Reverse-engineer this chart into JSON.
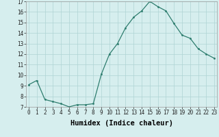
{
  "x": [
    0,
    1,
    2,
    3,
    4,
    5,
    6,
    7,
    8,
    9,
    10,
    11,
    12,
    13,
    14,
    15,
    16,
    17,
    18,
    19,
    20,
    21,
    22,
    23
  ],
  "y": [
    9.1,
    9.5,
    7.7,
    7.5,
    7.3,
    7.0,
    7.2,
    7.2,
    7.3,
    10.1,
    12.0,
    13.0,
    14.5,
    15.5,
    16.1,
    17.0,
    16.5,
    16.1,
    14.9,
    13.8,
    13.5,
    12.5,
    12.0,
    11.6
  ],
  "xlabel": "Humidex (Indice chaleur)",
  "ylim": [
    7,
    17
  ],
  "xlim": [
    -0.3,
    23.3
  ],
  "yticks": [
    7,
    8,
    9,
    10,
    11,
    12,
    13,
    14,
    15,
    16,
    17
  ],
  "xticks": [
    0,
    1,
    2,
    3,
    4,
    5,
    6,
    7,
    8,
    9,
    10,
    11,
    12,
    13,
    14,
    15,
    16,
    17,
    18,
    19,
    20,
    21,
    22,
    23
  ],
  "xtick_labels": [
    "0",
    "1",
    "2",
    "3",
    "4",
    "5",
    "6",
    "7",
    "8",
    "9",
    "10",
    "11",
    "12",
    "13",
    "14",
    "15",
    "16",
    "17",
    "18",
    "19",
    "20",
    "21",
    "22",
    "23"
  ],
  "line_color": "#2d7d6e",
  "marker_color": "#2d7d6e",
  "bg_color": "#d6eeee",
  "grid_color": "#aed4d4",
  "tick_fontsize": 5.5,
  "xlabel_fontsize": 7.5
}
